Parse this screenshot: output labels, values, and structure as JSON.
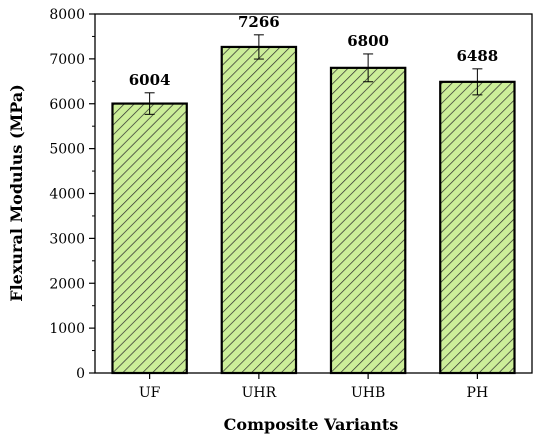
{
  "chart_data": {
    "type": "bar",
    "title": "",
    "xlabel": "Composite Variants",
    "ylabel": "Flexural Modulus (MPa)",
    "ylim": [
      0,
      8000
    ],
    "yticks": [
      0,
      1000,
      2000,
      3000,
      4000,
      5000,
      6000,
      7000,
      8000
    ],
    "categories": [
      "UF",
      "UHR",
      "UHB",
      "PH"
    ],
    "values": [
      6004,
      7266,
      6800,
      6488
    ],
    "data_labels": [
      "6004",
      "7266",
      "6800",
      "6488"
    ],
    "error": [
      240,
      270,
      310,
      290
    ],
    "grid": false,
    "legend": "none",
    "bar_fill": "#ccee99",
    "hatch_color": "#2a2a2a",
    "edge_color": "#000000"
  }
}
